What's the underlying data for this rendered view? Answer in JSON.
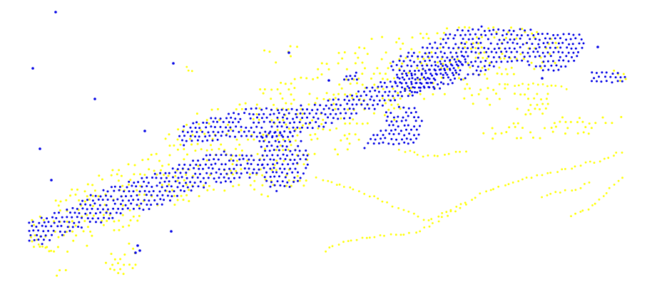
{
  "colors": {
    "background": "#ffffff",
    "class_a": "#0000e6",
    "class_b": "#ffff00"
  },
  "legend": []
}
